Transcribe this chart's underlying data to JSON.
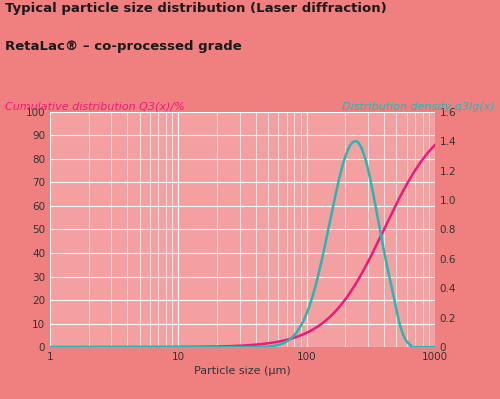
{
  "title_line1": "Typical particle size distribution (Laser diffraction)",
  "title_line2": "RetaLac® – co-processed grade",
  "ylabel_left": "Cumulative distribution Q3(x)/%",
  "ylabel_right": "Distribution density q3lg(x)",
  "xlabel": "Particle size (μm)",
  "bg_color_outer": "#F08080",
  "bg_color_plot": "#F4A0A0",
  "grid_color": "#FFFFFF",
  "cumulative_color": "#F0187C",
  "density_color": "#1DBBB4",
  "left_yticks": [
    0,
    10,
    20,
    30,
    40,
    50,
    60,
    70,
    80,
    90,
    100
  ],
  "right_yticks": [
    0,
    0.2,
    0.4,
    0.6,
    0.8,
    1.0,
    1.2,
    1.4,
    1.6
  ],
  "xtick_labels": [
    "1",
    "10",
    "100",
    "1000"
  ],
  "title_fontsize": 9.5,
  "subtitle_fontsize": 9.5,
  "axis_label_fontsize": 8.0,
  "tick_fontsize": 7.5,
  "line_width": 1.8
}
